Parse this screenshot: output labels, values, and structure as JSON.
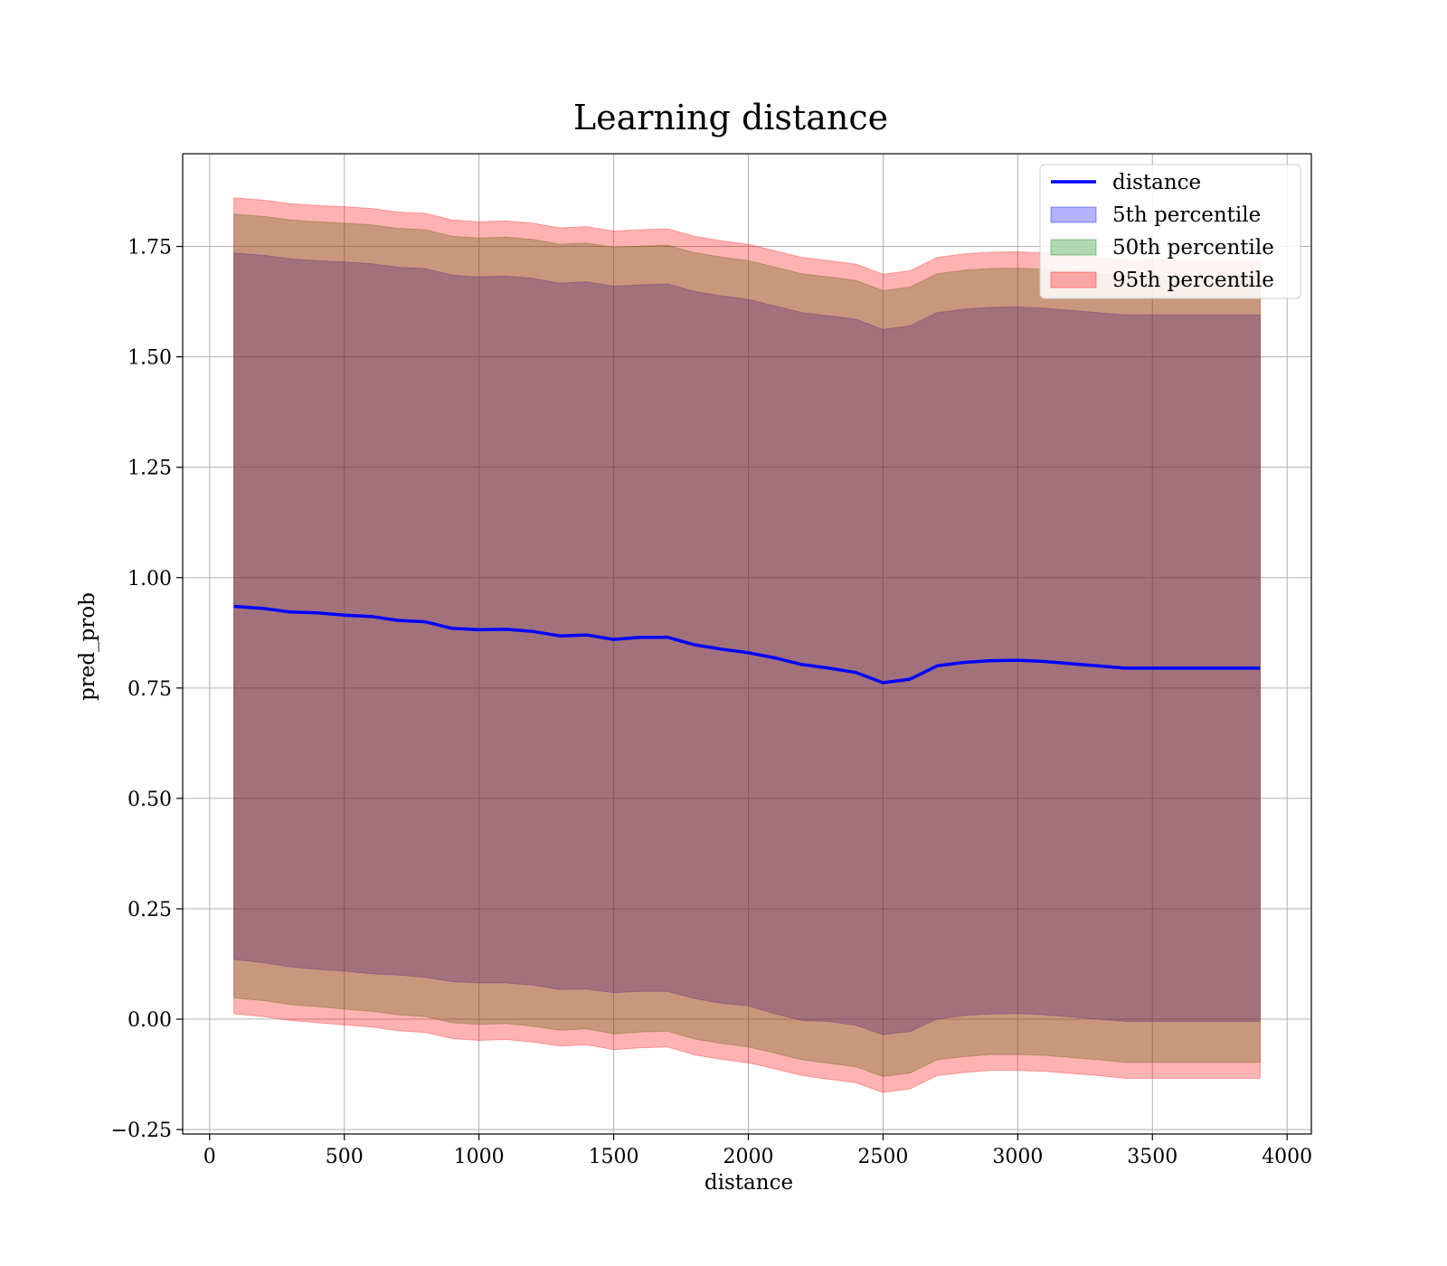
{
  "chart_data": {
    "type": "line",
    "title": "Learning distance",
    "xlabel": "distance",
    "ylabel": "pred_prob",
    "xlim": [
      -100,
      4090
    ],
    "ylim": [
      -0.26,
      1.96
    ],
    "xticks": [
      0,
      500,
      1000,
      1500,
      2000,
      2500,
      3000,
      3500,
      4000
    ],
    "xtick_labels": [
      "0",
      "500",
      "1000",
      "1500",
      "2000",
      "2500",
      "3000",
      "3500",
      "4000"
    ],
    "yticks": [
      -0.25,
      0.0,
      0.25,
      0.5,
      0.75,
      1.0,
      1.25,
      1.5,
      1.75
    ],
    "ytick_labels": [
      "−0.25",
      "0.00",
      "0.25",
      "0.50",
      "0.75",
      "1.00",
      "1.25",
      "1.50",
      "1.75"
    ],
    "grid": true,
    "legend_placement": "top-right",
    "x": [
      90,
      200,
      300,
      400,
      500,
      600,
      700,
      800,
      900,
      1000,
      1100,
      1200,
      1300,
      1400,
      1500,
      1600,
      1700,
      1800,
      1900,
      2000,
      2100,
      2200,
      2300,
      2400,
      2500,
      2600,
      2700,
      2800,
      2900,
      3000,
      3100,
      3200,
      3300,
      3400,
      3500,
      3600,
      3700,
      3800,
      3900
    ],
    "series": [
      {
        "name": "distance",
        "kind": "line",
        "color": "#0000ff",
        "values": [
          0.935,
          0.93,
          0.922,
          0.92,
          0.915,
          0.912,
          0.903,
          0.9,
          0.885,
          0.882,
          0.883,
          0.878,
          0.868,
          0.87,
          0.86,
          0.865,
          0.865,
          0.848,
          0.838,
          0.83,
          0.818,
          0.803,
          0.795,
          0.785,
          0.762,
          0.77,
          0.8,
          0.808,
          0.812,
          0.813,
          0.81,
          0.805,
          0.8,
          0.795,
          0.795,
          0.795,
          0.795,
          0.795,
          0.795
        ]
      },
      {
        "name": "5th percentile",
        "kind": "band",
        "color": "#0000ff",
        "opacity": 0.3,
        "lower": [
          0.135,
          0.128,
          0.118,
          0.113,
          0.109,
          0.103,
          0.1,
          0.095,
          0.085,
          0.082,
          0.082,
          0.077,
          0.067,
          0.068,
          0.06,
          0.063,
          0.063,
          0.047,
          0.036,
          0.03,
          0.012,
          -0.003,
          -0.005,
          -0.014,
          -0.035,
          -0.028,
          0.0,
          0.008,
          0.012,
          0.013,
          0.01,
          0.005,
          0.0,
          -0.005,
          -0.005,
          -0.005,
          -0.005,
          -0.005,
          -0.005
        ],
        "upper": [
          1.735,
          1.73,
          1.722,
          1.718,
          1.715,
          1.711,
          1.703,
          1.7,
          1.685,
          1.681,
          1.683,
          1.678,
          1.667,
          1.67,
          1.66,
          1.663,
          1.665,
          1.648,
          1.638,
          1.63,
          1.615,
          1.6,
          1.593,
          1.585,
          1.562,
          1.57,
          1.6,
          1.608,
          1.612,
          1.613,
          1.61,
          1.605,
          1.6,
          1.595,
          1.595,
          1.595,
          1.595,
          1.595,
          1.595
        ]
      },
      {
        "name": "50th percentile",
        "kind": "band",
        "color": "#008000",
        "opacity": 0.3,
        "lower": [
          0.048,
          0.042,
          0.033,
          0.028,
          0.023,
          0.018,
          0.01,
          0.006,
          -0.008,
          -0.012,
          -0.01,
          -0.016,
          -0.025,
          -0.022,
          -0.033,
          -0.029,
          -0.027,
          -0.045,
          -0.055,
          -0.063,
          -0.077,
          -0.092,
          -0.1,
          -0.108,
          -0.13,
          -0.122,
          -0.092,
          -0.085,
          -0.08,
          -0.08,
          -0.082,
          -0.087,
          -0.092,
          -0.098,
          -0.098,
          -0.098,
          -0.098,
          -0.098,
          -0.098
        ],
        "upper": [
          1.823,
          1.818,
          1.81,
          1.806,
          1.803,
          1.799,
          1.791,
          1.788,
          1.773,
          1.769,
          1.771,
          1.766,
          1.755,
          1.758,
          1.748,
          1.751,
          1.753,
          1.736,
          1.726,
          1.718,
          1.703,
          1.688,
          1.681,
          1.673,
          1.65,
          1.658,
          1.688,
          1.696,
          1.7,
          1.701,
          1.698,
          1.693,
          1.688,
          1.683,
          1.683,
          1.683,
          1.683,
          1.683,
          1.683
        ]
      },
      {
        "name": "95th percentile",
        "kind": "band",
        "color": "#ff0000",
        "opacity": 0.3,
        "lower": [
          0.012,
          0.006,
          -0.003,
          -0.008,
          -0.013,
          -0.018,
          -0.026,
          -0.03,
          -0.044,
          -0.048,
          -0.046,
          -0.052,
          -0.061,
          -0.058,
          -0.069,
          -0.065,
          -0.063,
          -0.081,
          -0.091,
          -0.099,
          -0.113,
          -0.128,
          -0.136,
          -0.144,
          -0.166,
          -0.158,
          -0.128,
          -0.121,
          -0.116,
          -0.116,
          -0.118,
          -0.123,
          -0.128,
          -0.134,
          -0.134,
          -0.134,
          -0.134,
          -0.134,
          -0.134
        ],
        "upper": [
          1.86,
          1.855,
          1.847,
          1.843,
          1.84,
          1.836,
          1.828,
          1.825,
          1.81,
          1.806,
          1.808,
          1.803,
          1.792,
          1.795,
          1.785,
          1.788,
          1.79,
          1.773,
          1.763,
          1.755,
          1.74,
          1.725,
          1.718,
          1.71,
          1.687,
          1.695,
          1.725,
          1.733,
          1.737,
          1.738,
          1.735,
          1.73,
          1.725,
          1.72,
          1.72,
          1.72,
          1.72,
          1.72,
          1.72
        ]
      }
    ]
  }
}
